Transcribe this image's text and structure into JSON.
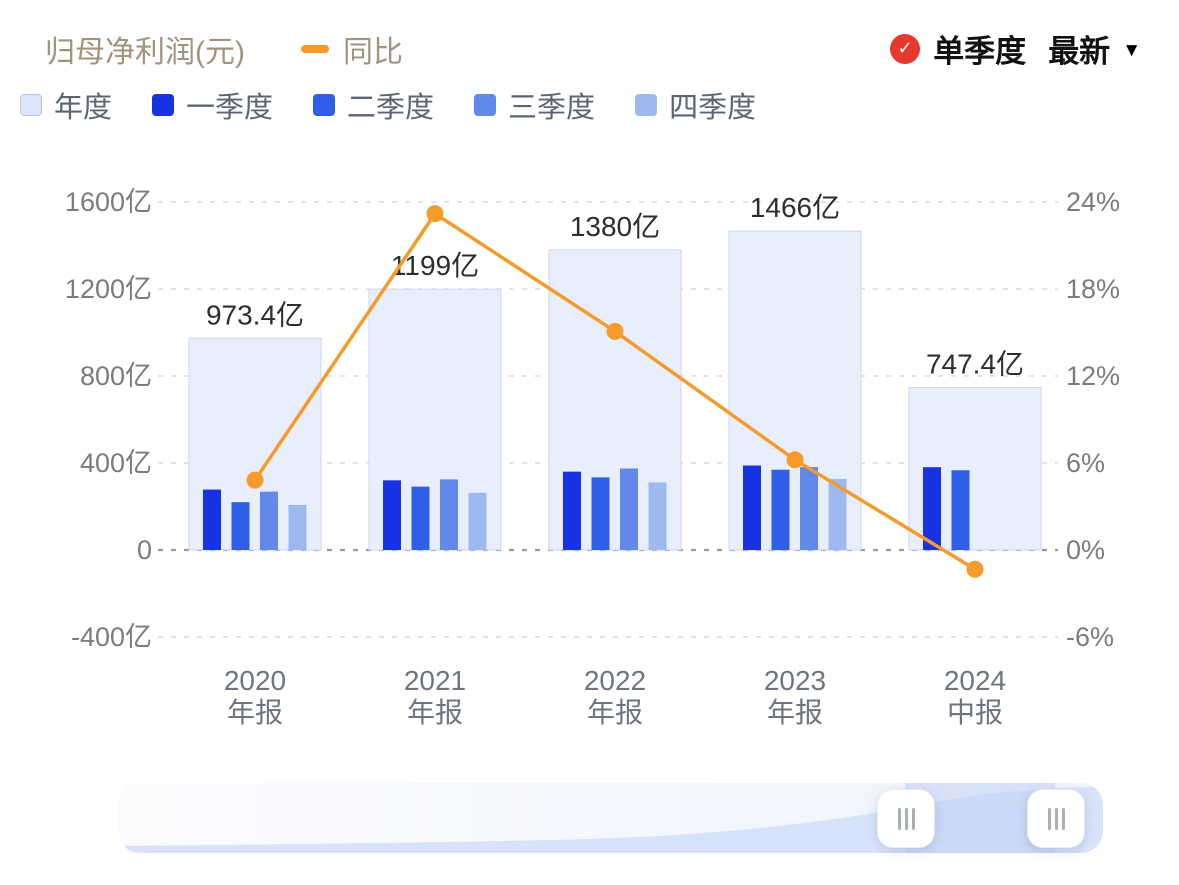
{
  "header": {
    "title": "归母净利润(元)",
    "line_legend": "同比",
    "quarter_toggle": "单季度",
    "latest_dropdown": "最新",
    "caret": "▼",
    "check": "✓"
  },
  "colors": {
    "check_red": "#e5392f"
  },
  "legend": {
    "items": [
      {
        "label": "年度",
        "color": "#dce5fb",
        "border": "#b3c4ef"
      },
      {
        "label": "一季度",
        "color": "#1733e4"
      },
      {
        "label": "二季度",
        "color": "#2f5fe8"
      },
      {
        "label": "三季度",
        "color": "#6289ea"
      },
      {
        "label": "四季度",
        "color": "#9db9f0"
      }
    ]
  },
  "chart_data": {
    "type": "combo-bar-line",
    "title": "归母净利润(元)",
    "categories": [
      {
        "year": "2020",
        "period": "年报"
      },
      {
        "year": "2021",
        "period": "年报"
      },
      {
        "year": "2022",
        "period": "年报"
      },
      {
        "year": "2023",
        "period": "年报"
      },
      {
        "year": "2024",
        "period": "中报"
      }
    ],
    "annual": {
      "name": "年度",
      "values": [
        973.4,
        1199,
        1380,
        1466,
        747.4
      ],
      "labels": [
        "973.4亿",
        "1199亿",
        "1380亿",
        "1466亿",
        "747.4亿"
      ],
      "fill": "#e9eefc",
      "border": "#ccd7f4"
    },
    "quarter_series": [
      {
        "name": "一季度",
        "color": "#1733e4",
        "values": [
          277.9,
          320.2,
          360.2,
          388.4,
          380.8
        ]
      },
      {
        "name": "二季度",
        "color": "#2f5fe8",
        "values": [
          219.9,
          291.3,
          334.0,
          369.1,
          366.6
        ]
      },
      {
        "name": "三季度",
        "color": "#6289ea",
        "values": [
          268.3,
          324.7,
          374.8,
          381.3,
          null
        ]
      },
      {
        "name": "四季度",
        "color": "#9db9f0",
        "values": [
          207.3,
          262.9,
          310.8,
          327.1,
          null
        ]
      }
    ],
    "line": {
      "name": "同比",
      "color": "#f59b2c",
      "unit": "%",
      "values": [
        4.82,
        23.2,
        15.08,
        6.22,
        -1.33
      ]
    },
    "left_axis": {
      "ticks": [
        1600,
        1200,
        800,
        400,
        0,
        -400
      ],
      "labels": [
        "1600亿",
        "1200亿",
        "800亿",
        "400亿",
        "0",
        "-400亿"
      ]
    },
    "right_axis": {
      "ticks": [
        24,
        18,
        12,
        6,
        0,
        -6
      ],
      "labels": [
        "24%",
        "18%",
        "12%",
        "6%",
        "0%",
        "-6%"
      ]
    },
    "colors": {
      "grid_line": "#dadada",
      "zero_line": "#9a9a9a"
    },
    "grid": "dashed-horizontal",
    "ylim_left_yi": [
      -400,
      1600
    ],
    "ylim_right_pct": [
      -6,
      24
    ]
  }
}
